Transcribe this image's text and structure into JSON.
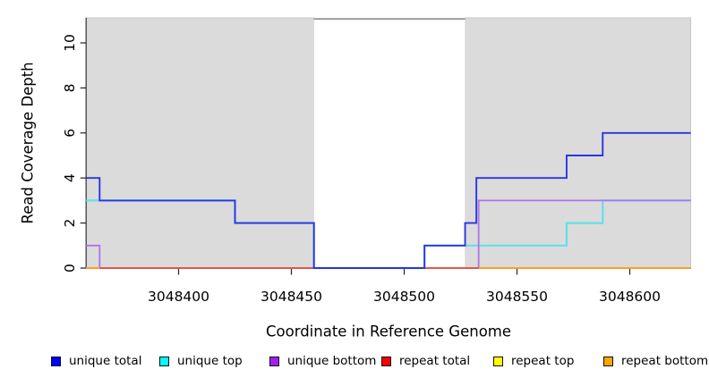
{
  "chart_data": {
    "type": "line",
    "subtype": "step-coverage-plot",
    "title": "",
    "xlabel": "Coordinate in Reference Genome",
    "ylabel": "Read Coverage Depth",
    "xlim": [
      3048359,
      3048627
    ],
    "ylim": [
      0,
      11.2
    ],
    "grid": "off",
    "legend_position": "bottom",
    "x_ticks": [
      3048400,
      3048450,
      3048500,
      3048550,
      3048600
    ],
    "x_tick_labels": [
      "3048400",
      "3048450",
      "3048500",
      "3048550",
      "3048600"
    ],
    "y_ticks": [
      0,
      2,
      4,
      6,
      8,
      10
    ],
    "y_tick_labels": [
      "0",
      "2",
      "4",
      "6",
      "8",
      "10"
    ],
    "shaded_regions": [
      {
        "name": "left-gray-region",
        "x0": 3048359,
        "x1": 3048460,
        "fill": "#dbdbdb",
        "stroke": "#c4c4c4"
      },
      {
        "name": "right-gray-region",
        "x0": 3048527,
        "x1": 3048627,
        "fill": "#dbdbdb",
        "stroke": "#c4c4c4"
      },
      {
        "name": "middle-white-gap",
        "x0": 3048460,
        "x1": 3048527,
        "fill": "#ffffff",
        "top_border": "#8c8c8c"
      }
    ],
    "series": [
      {
        "id": "repeat_top",
        "name": "repeat top",
        "swatch": "#ffff00",
        "line_color": "#e8d800",
        "width": 1.4,
        "z": 1,
        "steps": [
          [
            3048359,
            0
          ]
        ],
        "end": 3048627
      },
      {
        "id": "unique_top",
        "name": "unique top",
        "swatch": "#00ffff",
        "line_color": "#63e0e8",
        "width": 2.2,
        "z": 2,
        "steps": [
          [
            3048359,
            3
          ],
          [
            3048425,
            2
          ],
          [
            3048460,
            0
          ],
          [
            3048509,
            1
          ],
          [
            3048572,
            2
          ],
          [
            3048588,
            3
          ]
        ],
        "end": 3048627
      },
      {
        "id": "unique_bottom",
        "name": "unique bottom",
        "swatch": "#a020f0",
        "line_color": "#ad74e6",
        "width": 1.8,
        "z": 3,
        "steps": [
          [
            3048359,
            1
          ],
          [
            3048365,
            0
          ],
          [
            3048533,
            3
          ]
        ],
        "end": 3048627
      },
      {
        "id": "repeat_bottom",
        "name": "repeat bottom",
        "swatch": "#ffa500",
        "line_color": "#ff9d1e",
        "width": 2.0,
        "z": 4,
        "steps": [
          [
            3048359,
            0
          ]
        ],
        "end": 3048627
      },
      {
        "id": "repeat_total",
        "name": "repeat total",
        "swatch": "#ff0000",
        "line_color": "#db3d5f",
        "width": 1.5,
        "z": 5,
        "steps": [
          [
            3048359,
            0
          ]
        ],
        "end": 3048627,
        "visible_range": [
          3048365,
          3048533
        ]
      },
      {
        "id": "unique_total",
        "name": "unique total",
        "swatch": "#0000ff",
        "line_color": "#2b35e0",
        "width": 1.9,
        "z": 6,
        "steps": [
          [
            3048359,
            4
          ],
          [
            3048365,
            3
          ],
          [
            3048425,
            2
          ],
          [
            3048460,
            0
          ],
          [
            3048509,
            1
          ],
          [
            3048527,
            2
          ],
          [
            3048532,
            4
          ],
          [
            3048572,
            5
          ],
          [
            3048588,
            6
          ]
        ],
        "end": 3048627
      }
    ]
  },
  "legend": {
    "items": [
      {
        "label": "unique total",
        "color": "#0000ff"
      },
      {
        "label": "unique top",
        "color": "#00ffff"
      },
      {
        "label": "unique bottom",
        "color": "#a020f0"
      },
      {
        "label": "repeat total",
        "color": "#ff0000"
      },
      {
        "label": "repeat top",
        "color": "#ffff00"
      },
      {
        "label": "repeat bottom",
        "color": "#ffa500"
      }
    ]
  },
  "axis_colors": {
    "line": "#333333",
    "tick": "#222222",
    "label": "#000000"
  }
}
